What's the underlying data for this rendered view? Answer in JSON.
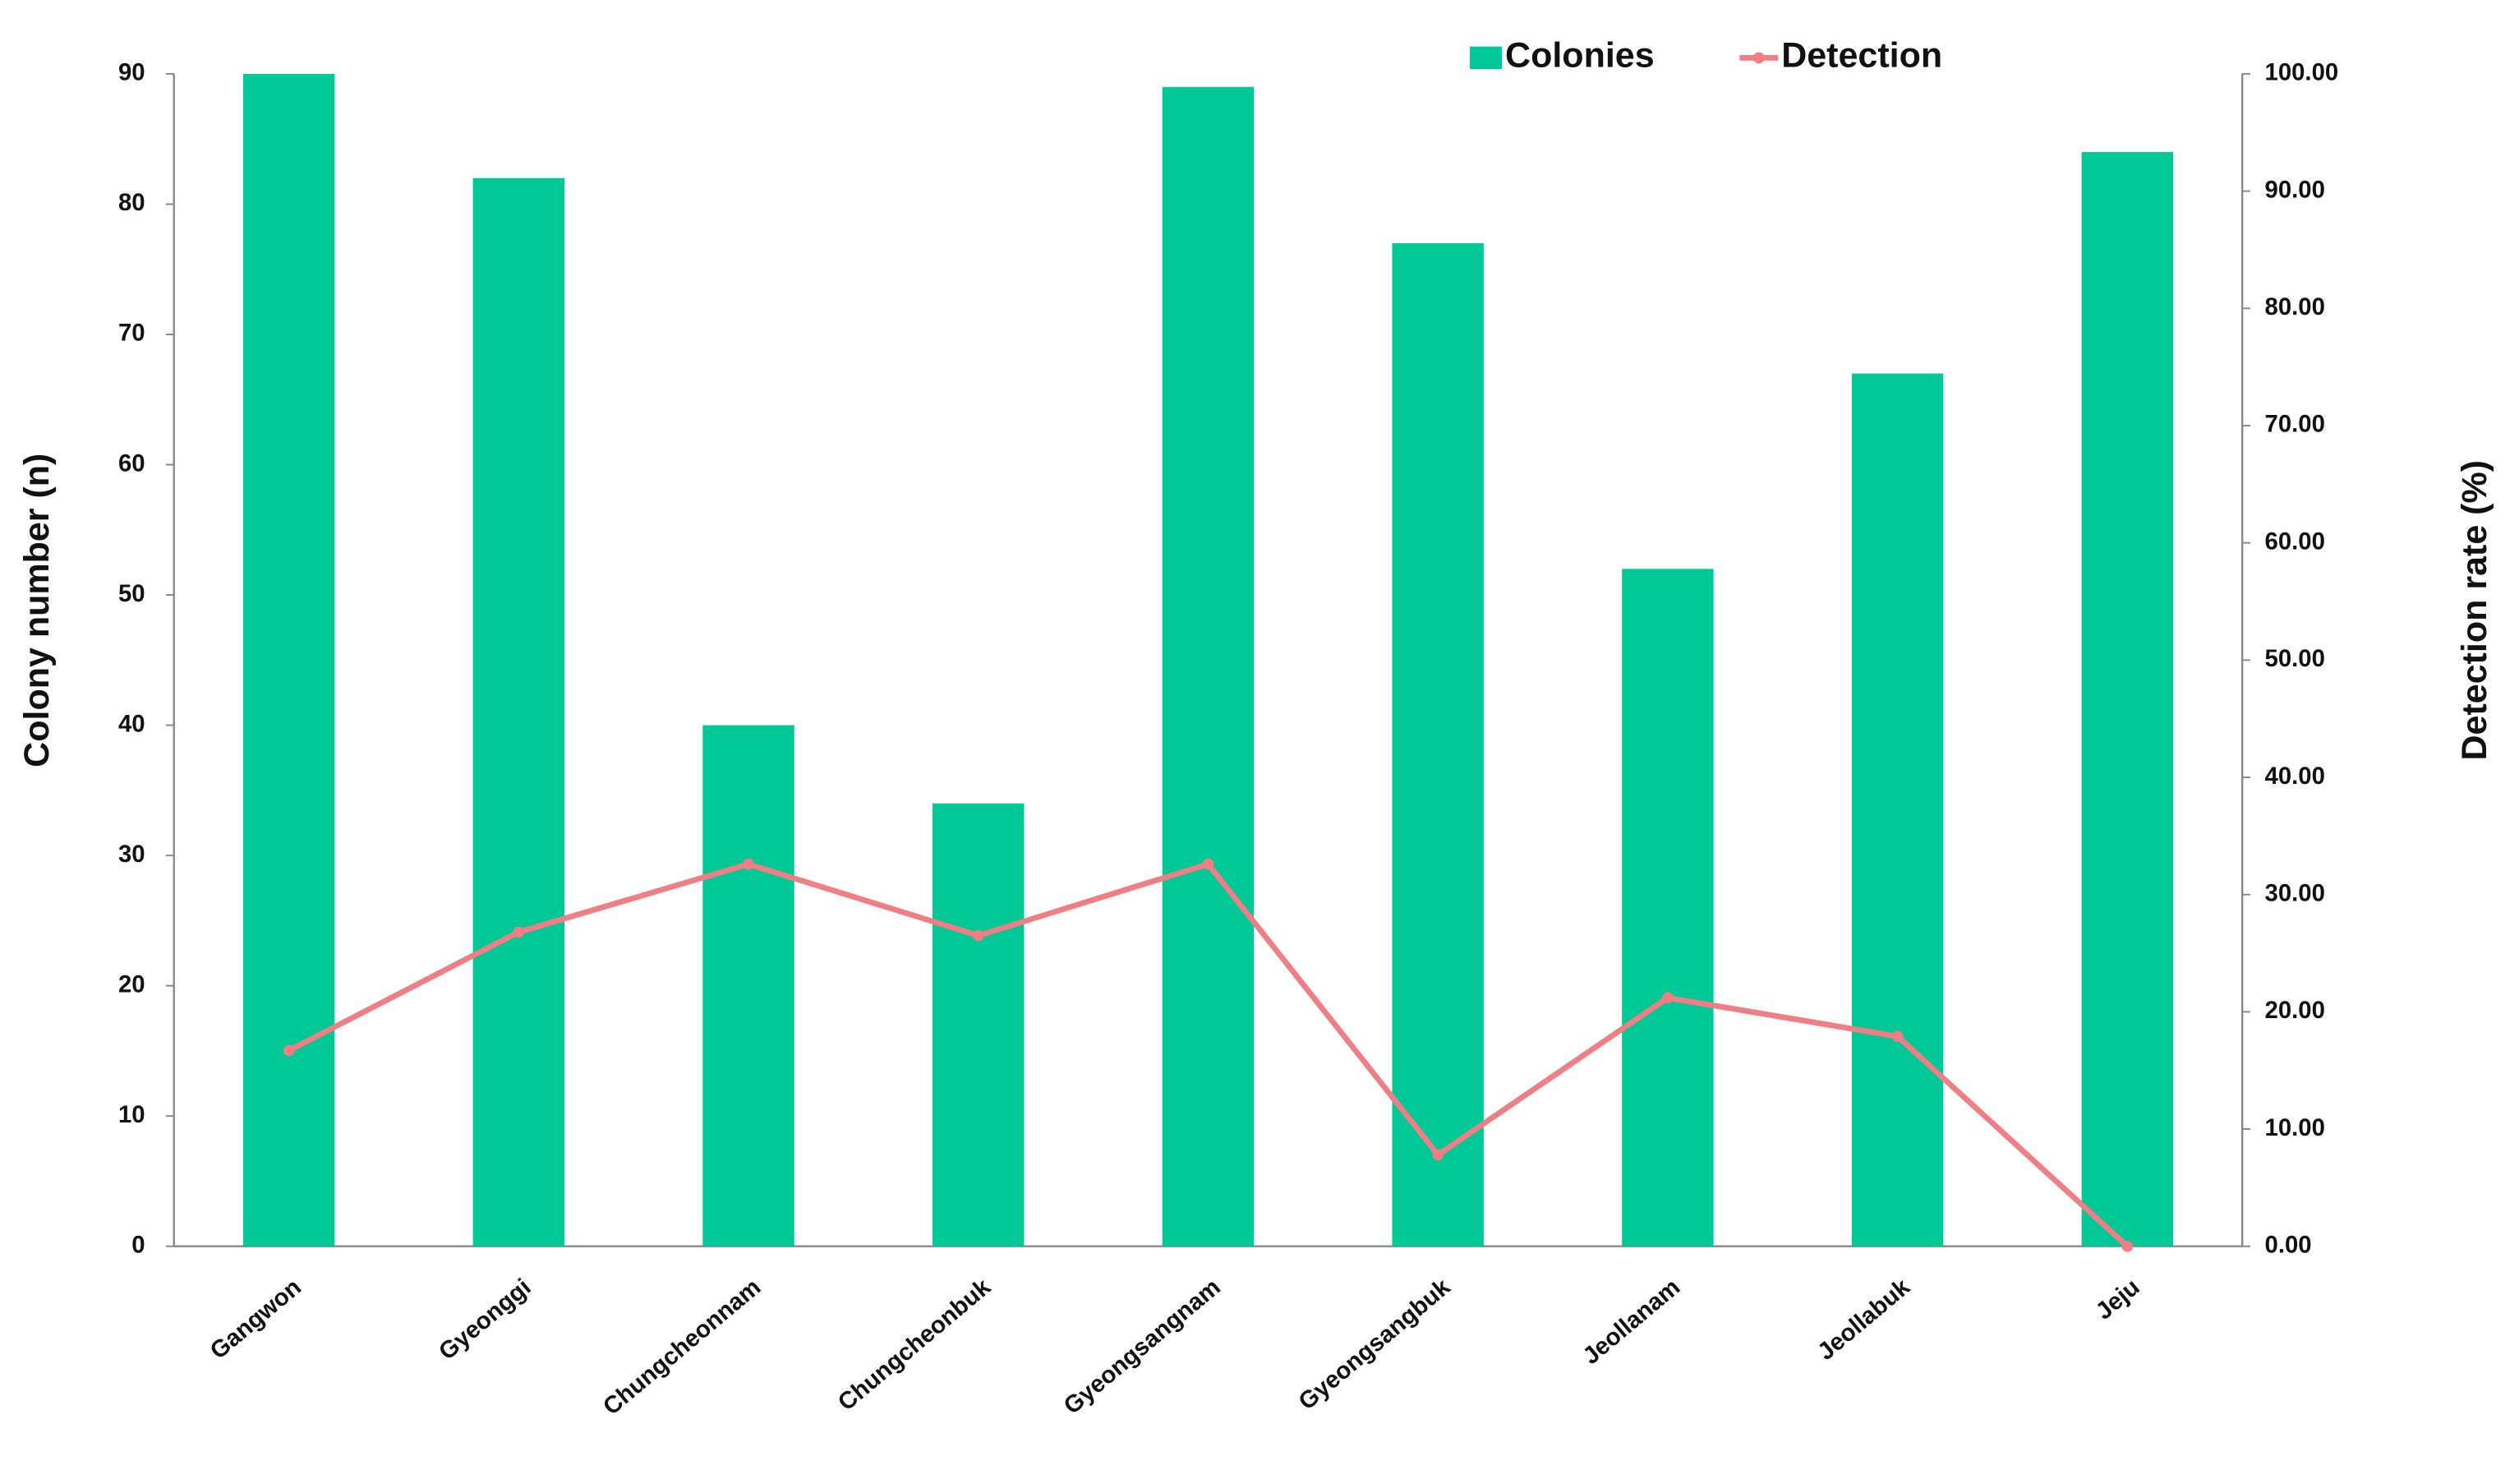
{
  "chart_data": {
    "type": "bar-line",
    "categories": [
      "Gangwon",
      "Gyeonggi",
      "Chungcheonnam",
      "Chungcheonbuk",
      "Gyeongsangnam",
      "Gyeongsangbuk",
      "Jeollanam",
      "Jeollabuk",
      "Jeju"
    ],
    "series": [
      {
        "name": "Colonies",
        "type": "bar",
        "color": "#00c896",
        "values": [
          90,
          82,
          40,
          34,
          89,
          77,
          52,
          67,
          84
        ]
      },
      {
        "name": "Detection",
        "type": "line",
        "axis": "y2",
        "color": "#ef7f84",
        "values": [
          16.7,
          26.8,
          32.6,
          26.5,
          32.6,
          7.8,
          21.2,
          17.9,
          0
        ]
      }
    ],
    "y_label": "Colony number (n)",
    "y2_label": "Detection rate (%)",
    "ylim": [
      0,
      90
    ],
    "yticks": [
      0,
      10,
      20,
      30,
      40,
      50,
      60,
      70,
      80,
      90
    ],
    "y2lim": [
      0,
      100
    ],
    "y2ticks": [
      {
        "value": 0,
        "label": "0.00"
      },
      {
        "value": 10,
        "label": "10.00"
      },
      {
        "value": 20,
        "label": "20.00"
      },
      {
        "value": 30,
        "label": "30.00"
      },
      {
        "value": 40,
        "label": "40.00"
      },
      {
        "value": 50,
        "label": "50.00"
      },
      {
        "value": 60,
        "label": "60.00"
      },
      {
        "value": 70,
        "label": "70.00"
      },
      {
        "value": 80,
        "label": "80.00"
      },
      {
        "value": 90,
        "label": "90.00"
      },
      {
        "value": 100,
        "label": "100.00"
      }
    ],
    "grid": false,
    "legend": "top"
  }
}
